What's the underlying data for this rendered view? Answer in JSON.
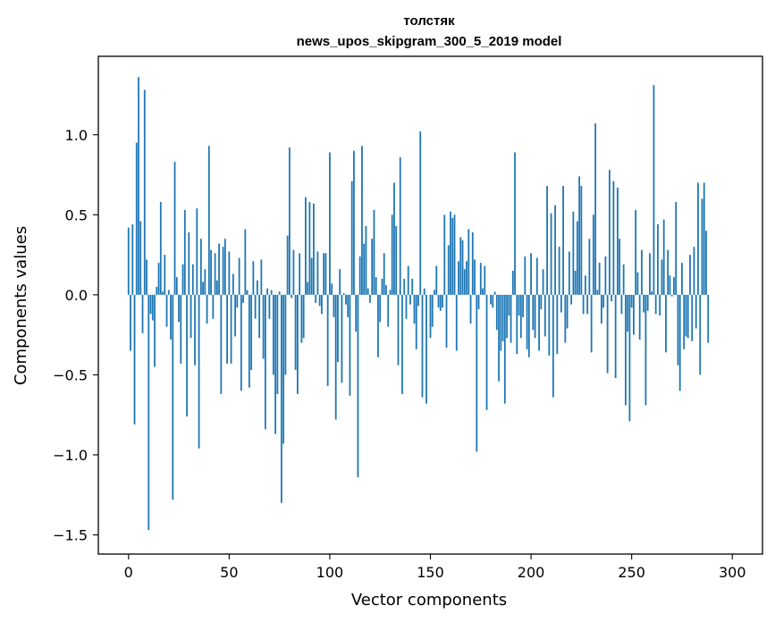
{
  "chart_data": {
    "type": "bar",
    "title_lines": [
      "толстяк",
      "news_upos_skipgram_300_5_2019 model"
    ],
    "xlabel": "Vector components",
    "ylabel": "Components values",
    "xlim": [
      -15,
      315
    ],
    "ylim": [
      -1.62,
      1.49
    ],
    "xticks": [
      0,
      50,
      100,
      150,
      200,
      250,
      300
    ],
    "xtick_labels": [
      "0",
      "50",
      "100",
      "150",
      "200",
      "250",
      "300"
    ],
    "yticks": [
      -1.5,
      -1.0,
      -0.5,
      0.0,
      0.5,
      1.0
    ],
    "ytick_labels": [
      "−1.5",
      "−1.0",
      "−0.5",
      "0.0",
      "0.5",
      "1.0"
    ],
    "bar_color": "#1f77b4",
    "values": [
      0.42,
      -0.35,
      0.44,
      -0.81,
      0.95,
      1.36,
      0.46,
      -0.24,
      1.28,
      0.22,
      -1.47,
      -0.12,
      -0.16,
      -0.45,
      0.05,
      0.2,
      0.58,
      0.02,
      0.25,
      -0.2,
      0.03,
      -0.28,
      -1.28,
      0.83,
      0.11,
      -0.17,
      -0.43,
      0.19,
      0.53,
      -0.76,
      0.39,
      -0.27,
      0.19,
      -0.44,
      0.54,
      -0.96,
      0.35,
      0.08,
      0.16,
      -0.18,
      0.93,
      0.28,
      -0.15,
      0.26,
      0.09,
      0.32,
      -0.62,
      0.3,
      0.35,
      -0.43,
      0.27,
      -0.43,
      0.13,
      -0.26,
      -0.08,
      0.23,
      -0.6,
      -0.05,
      0.41,
      0.03,
      -0.58,
      -0.47,
      0.21,
      -0.15,
      0.09,
      -0.27,
      0.22,
      -0.4,
      -0.84,
      0.04,
      -0.15,
      0.03,
      -0.5,
      -0.87,
      -0.62,
      0.02,
      -1.3,
      -0.93,
      -0.5,
      0.37,
      0.92,
      -0.02,
      0.28,
      -0.47,
      -0.62,
      0.26,
      -0.3,
      -0.27,
      0.61,
      0.08,
      0.58,
      0.23,
      0.57,
      -0.05,
      0.27,
      -0.07,
      -0.12,
      0.26,
      0.26,
      -0.57,
      0.89,
      0.07,
      -0.14,
      -0.78,
      -0.42,
      0.16,
      -0.55,
      0.01,
      -0.06,
      -0.14,
      -0.63,
      0.71,
      0.9,
      -0.23,
      -1.14,
      0.24,
      0.93,
      0.32,
      0.43,
      0.04,
      -0.05,
      0.35,
      0.53,
      0.11,
      -0.39,
      -0.17,
      0.1,
      0.26,
      0.06,
      -0.2,
      0.03,
      0.5,
      0.7,
      0.43,
      -0.44,
      0.86,
      -0.62,
      0.1,
      -0.15,
      0.18,
      -0.06,
      0.1,
      -0.18,
      -0.34,
      -0.07,
      1.02,
      -0.64,
      0.04,
      -0.68,
      0.0,
      -0.27,
      -0.2,
      0.03,
      0.18,
      -0.08,
      -0.1,
      -0.08,
      0.5,
      -0.33,
      0.31,
      0.52,
      0.48,
      0.5,
      -0.35,
      0.21,
      0.36,
      0.34,
      0.16,
      0.21,
      0.41,
      -0.18,
      0.39,
      0.22,
      -0.98,
      -0.09,
      0.2,
      0.04,
      0.18,
      -0.72,
      0.0,
      -0.06,
      -0.08,
      0.02,
      -0.22,
      -0.54,
      -0.35,
      -0.29,
      -0.68,
      -0.27,
      -0.13,
      -0.3,
      0.15,
      0.89,
      -0.37,
      -0.13,
      -0.27,
      -0.14,
      0.24,
      -0.34,
      -0.39,
      0.26,
      -0.22,
      -0.27,
      0.23,
      -0.35,
      -0.09,
      0.16,
      -0.26,
      0.68,
      -0.38,
      0.51,
      -0.64,
      0.56,
      -0.37,
      0.3,
      -0.11,
      0.68,
      -0.3,
      -0.21,
      0.27,
      -0.06,
      0.52,
      0.15,
      0.46,
      0.74,
      0.68,
      -0.12,
      0.12,
      -0.12,
      0.35,
      -0.36,
      0.5,
      1.07,
      0.03,
      0.2,
      -0.18,
      -0.08,
      0.24,
      -0.49,
      0.78,
      -0.04,
      0.71,
      -0.52,
      0.67,
      0.35,
      -0.12,
      0.19,
      -0.69,
      -0.23,
      -0.79,
      -0.08,
      -0.25,
      0.53,
      0.14,
      -0.28,
      0.28,
      -0.11,
      -0.69,
      -0.1,
      0.26,
      0.02,
      1.31,
      -0.12,
      0.44,
      -0.13,
      0.22,
      0.47,
      -0.36,
      0.28,
      0.12,
      -0.01,
      0.11,
      0.58,
      -0.44,
      -0.6,
      0.2,
      -0.34,
      -0.26,
      -0.27,
      0.25,
      -0.29,
      0.3,
      -0.21,
      0.7,
      -0.5,
      0.6,
      0.7,
      0.4,
      -0.3
    ],
    "x_start": 0
  }
}
